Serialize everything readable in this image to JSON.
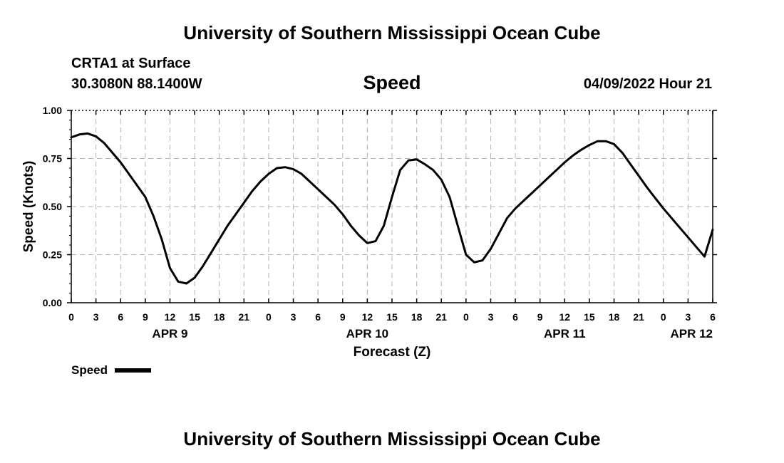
{
  "header": {
    "title": "University of Southern Mississippi Ocean Cube",
    "station": "CRTA1 at Surface",
    "location": "30.3080N  88.1400W",
    "variable": "Speed",
    "timestamp": "04/09/2022 Hour 21"
  },
  "footer": {
    "title": "University of Southern Mississippi Ocean Cube"
  },
  "legend": {
    "label": "Speed"
  },
  "chart_data": {
    "type": "line",
    "title": "Speed",
    "xlabel": "Forecast (Z)",
    "ylabel": "Speed (Knots)",
    "ylim": [
      0,
      1
    ],
    "xlim": [
      0,
      78
    ],
    "x_unit": "hours from APR 9 00Z",
    "grid": true,
    "legend_position": "bottom-left",
    "line_color": "#000000",
    "x_ticks": [
      0,
      3,
      6,
      9,
      12,
      15,
      18,
      21,
      24,
      27,
      30,
      33,
      36,
      39,
      42,
      45,
      48,
      51,
      54,
      57,
      60,
      63,
      66,
      69,
      72,
      75,
      78
    ],
    "x_tick_labels": [
      "0",
      "3",
      "6",
      "9",
      "12",
      "15",
      "18",
      "21",
      "0",
      "3",
      "6",
      "9",
      "12",
      "15",
      "18",
      "21",
      "0",
      "3",
      "6",
      "9",
      "12",
      "15",
      "18",
      "21",
      "0",
      "3",
      "6"
    ],
    "y_ticks": [
      0,
      0.25,
      0.5,
      0.75,
      1.0
    ],
    "y_tick_labels": [
      "0.00",
      "0.25",
      "0.50",
      "0.75",
      "1.00"
    ],
    "date_labels": [
      {
        "x": 12,
        "label": "APR 9"
      },
      {
        "x": 36,
        "label": "APR 10"
      },
      {
        "x": 60,
        "label": "APR 11"
      },
      {
        "x": 75,
        "label": "APR 12"
      }
    ],
    "series": [
      {
        "name": "Speed",
        "x": [
          0,
          1,
          2,
          3,
          4,
          5,
          6,
          7,
          8,
          9,
          10,
          11,
          12,
          13,
          14,
          15,
          16,
          17,
          18,
          19,
          20,
          21,
          22,
          23,
          24,
          25,
          26,
          27,
          28,
          29,
          30,
          31,
          32,
          33,
          34,
          35,
          36,
          37,
          38,
          39,
          40,
          41,
          42,
          43,
          44,
          45,
          46,
          47,
          48,
          49,
          50,
          51,
          52,
          53,
          54,
          55,
          56,
          57,
          58,
          59,
          60,
          61,
          62,
          63,
          64,
          65,
          66,
          67,
          68,
          69,
          70,
          71,
          72,
          73,
          74,
          75,
          76,
          77,
          78
        ],
        "values": [
          0.86,
          0.875,
          0.88,
          0.865,
          0.83,
          0.78,
          0.73,
          0.67,
          0.61,
          0.55,
          0.45,
          0.33,
          0.18,
          0.11,
          0.1,
          0.13,
          0.19,
          0.26,
          0.33,
          0.4,
          0.46,
          0.52,
          0.58,
          0.63,
          0.67,
          0.7,
          0.705,
          0.695,
          0.67,
          0.63,
          0.59,
          0.55,
          0.51,
          0.46,
          0.4,
          0.35,
          0.31,
          0.32,
          0.4,
          0.55,
          0.69,
          0.74,
          0.745,
          0.72,
          0.69,
          0.64,
          0.55,
          0.4,
          0.25,
          0.21,
          0.22,
          0.28,
          0.36,
          0.44,
          0.49,
          0.53,
          0.57,
          0.61,
          0.65,
          0.69,
          0.73,
          0.765,
          0.795,
          0.82,
          0.84,
          0.84,
          0.825,
          0.78,
          0.72,
          0.66,
          0.6,
          0.545,
          0.49,
          0.44,
          0.39,
          0.34,
          0.29,
          0.24,
          0.38
        ]
      }
    ]
  }
}
